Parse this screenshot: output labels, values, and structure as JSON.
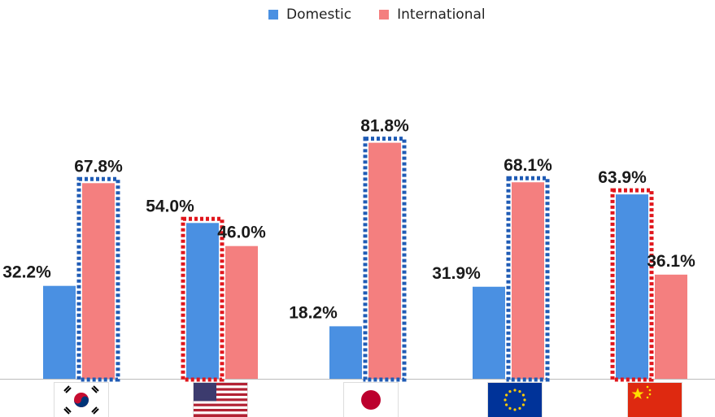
{
  "chart_data": {
    "type": "bar",
    "categories": [
      "South Korea",
      "United States",
      "Japan",
      "European Union",
      "China"
    ],
    "series": [
      {
        "name": "Domestic",
        "color": "#4a90e2",
        "values": [
          32.2,
          54.0,
          18.2,
          31.9,
          63.9
        ]
      },
      {
        "name": "International",
        "color": "#f47f7f",
        "values": [
          67.8,
          46.0,
          81.8,
          68.1,
          36.1
        ]
      }
    ],
    "data_labels": [
      [
        "32.2%",
        "67.8%"
      ],
      [
        "54.0%",
        "46.0%"
      ],
      [
        "18.2%",
        "81.8%"
      ],
      [
        "31.9%",
        "68.1%"
      ],
      [
        "63.9%",
        "36.1%"
      ]
    ],
    "highlight": [
      "International",
      "Domestic",
      "International",
      "International",
      "Domestic"
    ],
    "highlight_colors": {
      "International": "#1f5bb5",
      "Domestic": "#e0161c"
    },
    "ylim": [
      0,
      100
    ],
    "grid": false,
    "legend_position": "top-center"
  },
  "icons": [
    "flag-south-korea-icon",
    "flag-usa-icon",
    "flag-japan-icon",
    "flag-eu-icon",
    "flag-china-icon"
  ]
}
